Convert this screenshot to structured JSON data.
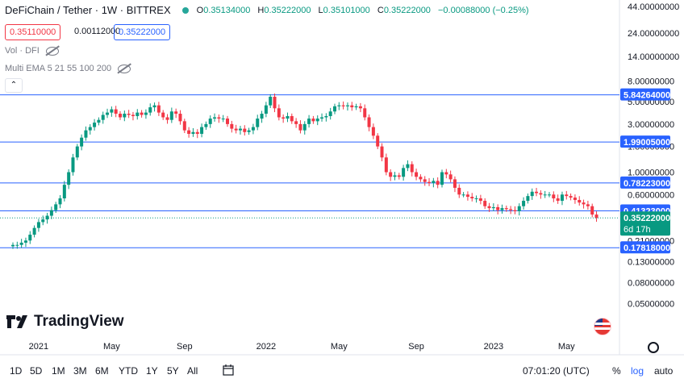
{
  "header": {
    "symbol": "DeFiChain / Tether · 1W · BITTREX",
    "open_label": "O",
    "open": "0.35134000",
    "high_label": "H",
    "high": "0.35222000",
    "low_label": "L",
    "low": "0.35101000",
    "close_label": "C",
    "close": "0.35222000",
    "change": "−0.00088000 (−0.25%)",
    "bid": "0.35110000",
    "spread": "0.00112000",
    "ask": "0.35222000"
  },
  "indicators": {
    "volume": "Vol · DFI",
    "ema": "Multi EMA 5 21 55 100 200"
  },
  "brand": "TradingView",
  "toolbar": {
    "ranges": [
      "1D",
      "5D",
      "1M",
      "3M",
      "6M",
      "YTD",
      "1Y",
      "5Y",
      "All"
    ],
    "time": "07:01:20 (UTC)",
    "percent": "%",
    "log": "log",
    "auto": "auto"
  },
  "colors": {
    "up": "#089981",
    "down": "#f23645",
    "hline": "#2962ff",
    "current": "#089981"
  },
  "chart_data": {
    "type": "candlestick",
    "log_scale": true,
    "ylim": [
      0.03,
      44
    ],
    "y_ticks": [
      "44.00000000",
      "24.00000000",
      "14.00000000",
      "8.00000000",
      "5.00000000",
      "3.00000000",
      "1.80000000",
      "1.00000000",
      "0.60000000",
      "0.35222000",
      "0.21000000",
      "0.13000000",
      "0.08000000",
      "0.05000000"
    ],
    "y_tick_values": [
      44,
      24,
      14,
      8,
      5,
      3,
      1.8,
      1,
      0.6,
      0.35222,
      0.21,
      0.13,
      0.08,
      0.05
    ],
    "x_ticks": [
      {
        "label": "2021",
        "week": 6
      },
      {
        "label": "May",
        "week": 23
      },
      {
        "label": "Sep",
        "week": 40
      },
      {
        "label": "2022",
        "week": 59
      },
      {
        "label": "May",
        "week": 76
      },
      {
        "label": "Sep",
        "week": 94
      },
      {
        "label": "2023",
        "week": 112
      },
      {
        "label": "May",
        "week": 129
      }
    ],
    "horizontal_lines": [
      {
        "value": 5.84264,
        "label": "5.84264000"
      },
      {
        "value": 1.99005,
        "label": "1.99005000"
      },
      {
        "value": 0.78223,
        "label": "0.78223000"
      },
      {
        "value": 0.41323,
        "label": "0.41323000"
      },
      {
        "value": 0.17818,
        "label": "0.17818000"
      }
    ],
    "current_price": {
      "value": 0.35222,
      "label": "0.35222000",
      "countdown": "6d 17h"
    },
    "close": [
      0.19,
      0.19,
      0.2,
      0.21,
      0.24,
      0.28,
      0.32,
      0.34,
      0.37,
      0.42,
      0.48,
      0.55,
      0.75,
      1.0,
      1.4,
      1.8,
      2.2,
      2.6,
      2.8,
      3.1,
      3.3,
      3.7,
      3.9,
      4.2,
      3.8,
      3.5,
      3.8,
      3.7,
      3.6,
      3.9,
      3.7,
      3.9,
      4.4,
      4.6,
      3.9,
      3.5,
      3.3,
      4.0,
      3.8,
      3.2,
      2.6,
      2.4,
      2.5,
      2.4,
      2.8,
      3.0,
      3.4,
      3.5,
      3.4,
      3.4,
      3.0,
      2.7,
      2.6,
      2.7,
      2.5,
      2.6,
      2.8,
      3.4,
      3.8,
      4.6,
      5.6,
      4.3,
      3.5,
      3.4,
      3.6,
      3.2,
      3.0,
      2.6,
      3.0,
      3.4,
      3.2,
      3.4,
      3.5,
      3.6,
      4.0,
      4.5,
      4.6,
      4.5,
      4.6,
      4.4,
      4.5,
      4.3,
      3.5,
      2.8,
      2.3,
      1.8,
      1.4,
      1.0,
      0.9,
      0.93,
      0.9,
      1.1,
      1.2,
      1.0,
      0.9,
      0.85,
      0.8,
      0.78,
      0.82,
      0.75,
      1.0,
      0.95,
      0.85,
      0.7,
      0.6,
      0.6,
      0.57,
      0.55,
      0.55,
      0.52,
      0.46,
      0.44,
      0.45,
      0.42,
      0.44,
      0.43,
      0.42,
      0.41,
      0.46,
      0.52,
      0.58,
      0.64,
      0.62,
      0.6,
      0.6,
      0.6,
      0.55,
      0.52,
      0.6,
      0.58,
      0.56,
      0.53,
      0.5,
      0.48,
      0.46,
      0.38,
      0.352
    ]
  }
}
